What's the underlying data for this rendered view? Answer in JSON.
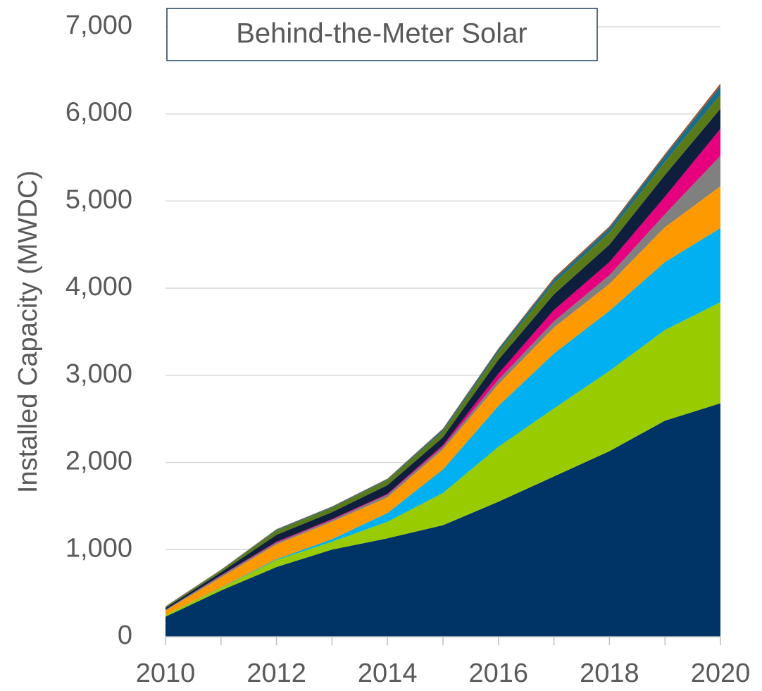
{
  "chart_data": {
    "type": "stacked_area",
    "title": "Behind-the-Meter Solar",
    "y_label": "Installed Capacity (MWDC)",
    "x": [
      2010,
      2011,
      2012,
      2013,
      2014,
      2015,
      2016,
      2017,
      2018,
      2019,
      2020
    ],
    "xlim": [
      2010,
      2020
    ],
    "xticks": [
      2010,
      2012,
      2014,
      2016,
      2018,
      2020
    ],
    "ylim": [
      0,
      7000
    ],
    "yticks": [
      0,
      {
        "value": 1000,
        "label": "1,000"
      },
      {
        "value": 2000,
        "label": "2,000"
      },
      {
        "value": 3000,
        "label": "3,000"
      },
      {
        "value": 4000,
        "label": "4,000"
      },
      {
        "value": 5000,
        "label": "5,000"
      },
      {
        "value": 6000,
        "label": "6,000"
      },
      {
        "value": 7000,
        "label": "7,000"
      }
    ],
    "grid": true,
    "series": [
      {
        "color": "#003366",
        "values": [
          230,
          530,
          800,
          1000,
          1130,
          1280,
          1550,
          1840,
          2130,
          2480,
          2680
        ]
      },
      {
        "color": "#99cc00",
        "values": [
          20,
          30,
          80,
          90,
          190,
          370,
          630,
          780,
          920,
          1040,
          1160
        ]
      },
      {
        "color": "#00b0f0",
        "values": [
          0,
          5,
          10,
          30,
          100,
          270,
          470,
          630,
          690,
          780,
          850
        ]
      },
      {
        "color": "#ff9900",
        "values": [
          50,
          115,
          170,
          200,
          180,
          230,
          250,
          300,
          310,
          400,
          480
        ]
      },
      {
        "color": "#808080",
        "values": [
          10,
          20,
          20,
          20,
          30,
          30,
          50,
          70,
          100,
          150,
          350
        ]
      },
      {
        "color": "#e6007e",
        "values": [
          0,
          5,
          10,
          10,
          10,
          20,
          70,
          130,
          150,
          200,
          310
        ]
      },
      {
        "color": "#0d1f3c",
        "values": [
          20,
          35,
          80,
          80,
          100,
          90,
          160,
          180,
          200,
          250,
          230
        ]
      },
      {
        "color": "#5a7a1a",
        "values": [
          10,
          20,
          50,
          50,
          60,
          70,
          90,
          130,
          140,
          150,
          160
        ]
      },
      {
        "color": "#1a6e8a",
        "values": [
          5,
          5,
          10,
          10,
          10,
          20,
          30,
          40,
          50,
          70,
          100
        ]
      },
      {
        "color": "#a0522d",
        "values": [
          5,
          5,
          5,
          5,
          5,
          10,
          10,
          20,
          20,
          20,
          30
        ]
      }
    ]
  }
}
